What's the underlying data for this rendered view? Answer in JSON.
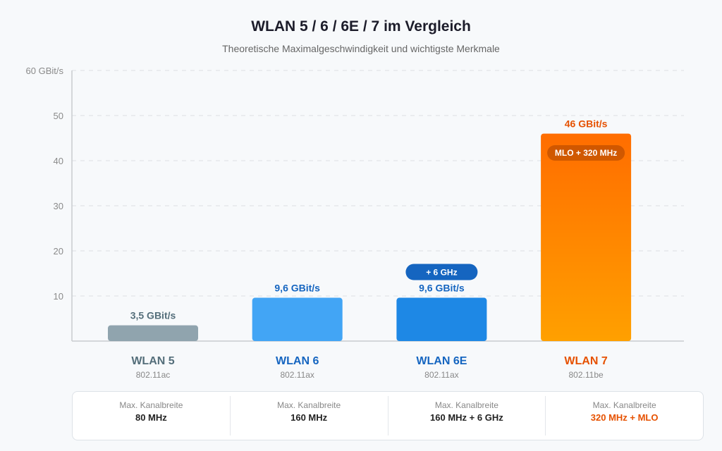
{
  "chart_data": {
    "type": "bar",
    "title": "WLAN 5 / 6 / 6E / 7 im Vergleich",
    "subtitle": "Theoretische Maximalgeschwindigkeit und wichtigste Merkmale",
    "ylim": [
      0,
      60
    ],
    "yticks": [
      10,
      20,
      30,
      40,
      50,
      60
    ],
    "ytick_labels": [
      "10",
      "20",
      "30",
      "40",
      "50",
      "60 GBit/s"
    ],
    "grid": true,
    "categories": [
      "WLAN 5",
      "WLAN 6",
      "WLAN 6E",
      "WLAN 7"
    ],
    "standards": [
      "802.11ac",
      "802.11ax",
      "802.11ax",
      "802.11be"
    ],
    "values": [
      3.5,
      9.6,
      9.6,
      46
    ],
    "value_labels": [
      "3,5 GBit/s",
      "9,6 GBit/s",
      "9,6 GBit/s",
      "46 GBit/s"
    ],
    "bar_colors": [
      "#90a4ae",
      "#42a5f5",
      "#1e88e5",
      "#ff8f00"
    ],
    "label_colors": [
      "#546e7a",
      "#1565c0",
      "#1565c0",
      "#e65100"
    ],
    "badges": [
      null,
      null,
      "+ 6 GHz",
      "MLO + 320 MHz"
    ]
  },
  "cards": [
    {
      "label": "Max. Kanalbreite",
      "value": "80 MHz"
    },
    {
      "label": "Max. Kanalbreite",
      "value": "160 MHz"
    },
    {
      "label": "Max. Kanalbreite",
      "value": "160 MHz + 6 GHz"
    },
    {
      "label": "Max. Kanalbreite",
      "value": "320 MHz + MLO",
      "highlight": "#e65100"
    }
  ]
}
